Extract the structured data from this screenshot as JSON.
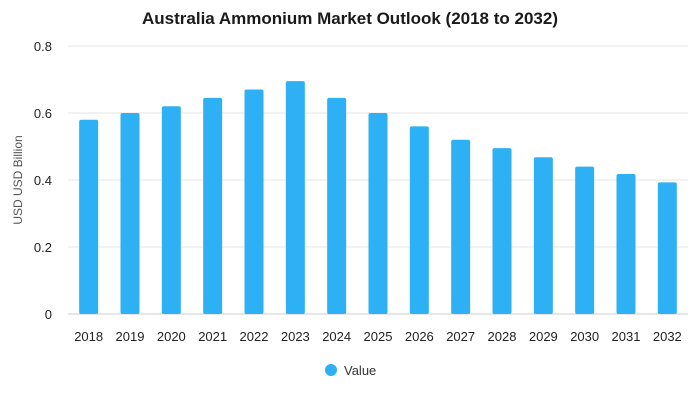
{
  "chart_data": {
    "type": "bar",
    "title": "Australia Ammonium Market Outlook (2018 to 2032)",
    "xlabel": "",
    "ylabel": "USD USD Billion",
    "categories": [
      "2018",
      "2019",
      "2020",
      "2021",
      "2022",
      "2023",
      "2024",
      "2025",
      "2026",
      "2027",
      "2028",
      "2029",
      "2030",
      "2031",
      "2032"
    ],
    "series": [
      {
        "name": "Value",
        "color": "#2eb0f5",
        "values": [
          0.58,
          0.6,
          0.62,
          0.645,
          0.67,
          0.695,
          0.645,
          0.6,
          0.56,
          0.52,
          0.495,
          0.468,
          0.44,
          0.418,
          0.393
        ]
      }
    ],
    "ylim": [
      0,
      0.8
    ],
    "yticks": [
      "0",
      "0.2",
      "0.4",
      "0.6",
      "0.8"
    ],
    "grid": true,
    "legend_position": "bottom-center"
  }
}
